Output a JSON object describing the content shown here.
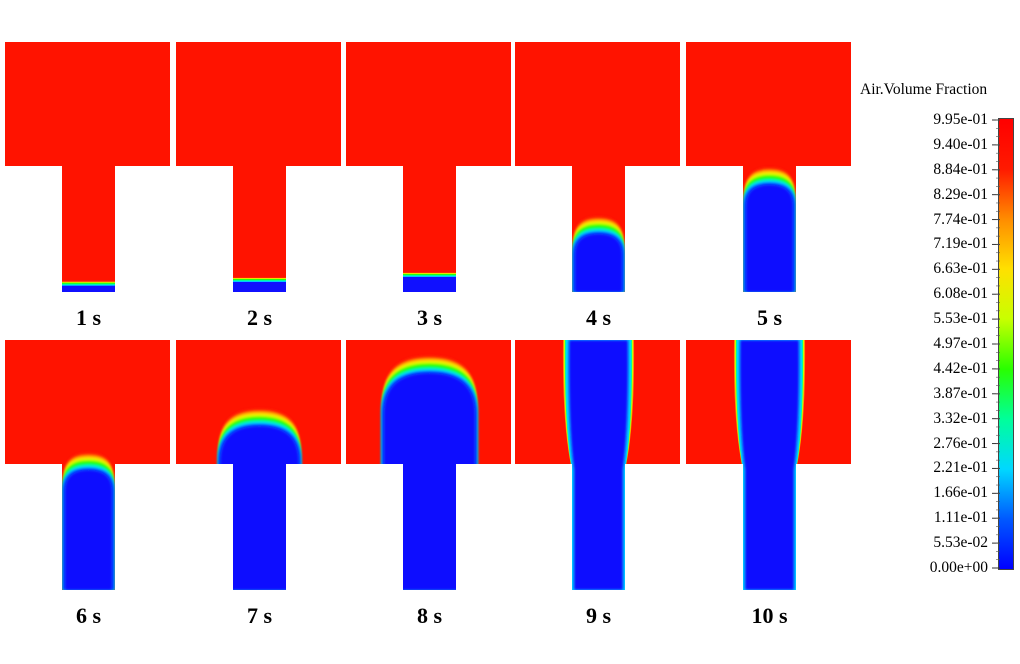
{
  "colormap": {
    "title": "Air.Volume Fraction",
    "stops": [
      "#0000ff",
      "#0059ff",
      "#00d8ff",
      "#00ff9a",
      "#29ff00",
      "#c8ff00",
      "#ffe000",
      "#ff8c00",
      "#ff1a00",
      "#ff0000"
    ],
    "ticks": [
      "9.95e-01",
      "9.40e-01",
      "8.84e-01",
      "8.29e-01",
      "7.74e-01",
      "7.19e-01",
      "6.63e-01",
      "6.08e-01",
      "5.53e-01",
      "4.97e-01",
      "4.42e-01",
      "3.87e-01",
      "3.32e-01",
      "2.76e-01",
      "2.21e-01",
      "1.66e-01",
      "1.11e-01",
      "5.53e-02",
      "0.00e+00"
    ]
  },
  "colors": {
    "liquid": "#1010ff",
    "air": "#ff1300"
  },
  "snapshots": [
    {
      "label": "1 s",
      "interface_height_fraction": 0.05,
      "dome": false
    },
    {
      "label": "2 s",
      "interface_height_fraction": 0.08,
      "dome": false
    },
    {
      "label": "3 s",
      "interface_height_fraction": 0.12,
      "dome": false
    },
    {
      "label": "4 s",
      "interface_height_fraction": 0.46,
      "dome": true
    },
    {
      "label": "5 s",
      "interface_height_fraction": 0.85,
      "dome": true
    },
    {
      "label": "6 s",
      "interface_height_fraction": 0.95,
      "dome": true
    },
    {
      "label": "7 s",
      "interface_height_fraction": 1.3,
      "dome": true
    },
    {
      "label": "8 s",
      "interface_height_fraction": 1.72,
      "dome": true
    },
    {
      "label": "9 s",
      "interface_height_fraction": 2.0,
      "dome": false
    },
    {
      "label": "10 s",
      "interface_height_fraction": 2.0,
      "dome": false
    }
  ]
}
